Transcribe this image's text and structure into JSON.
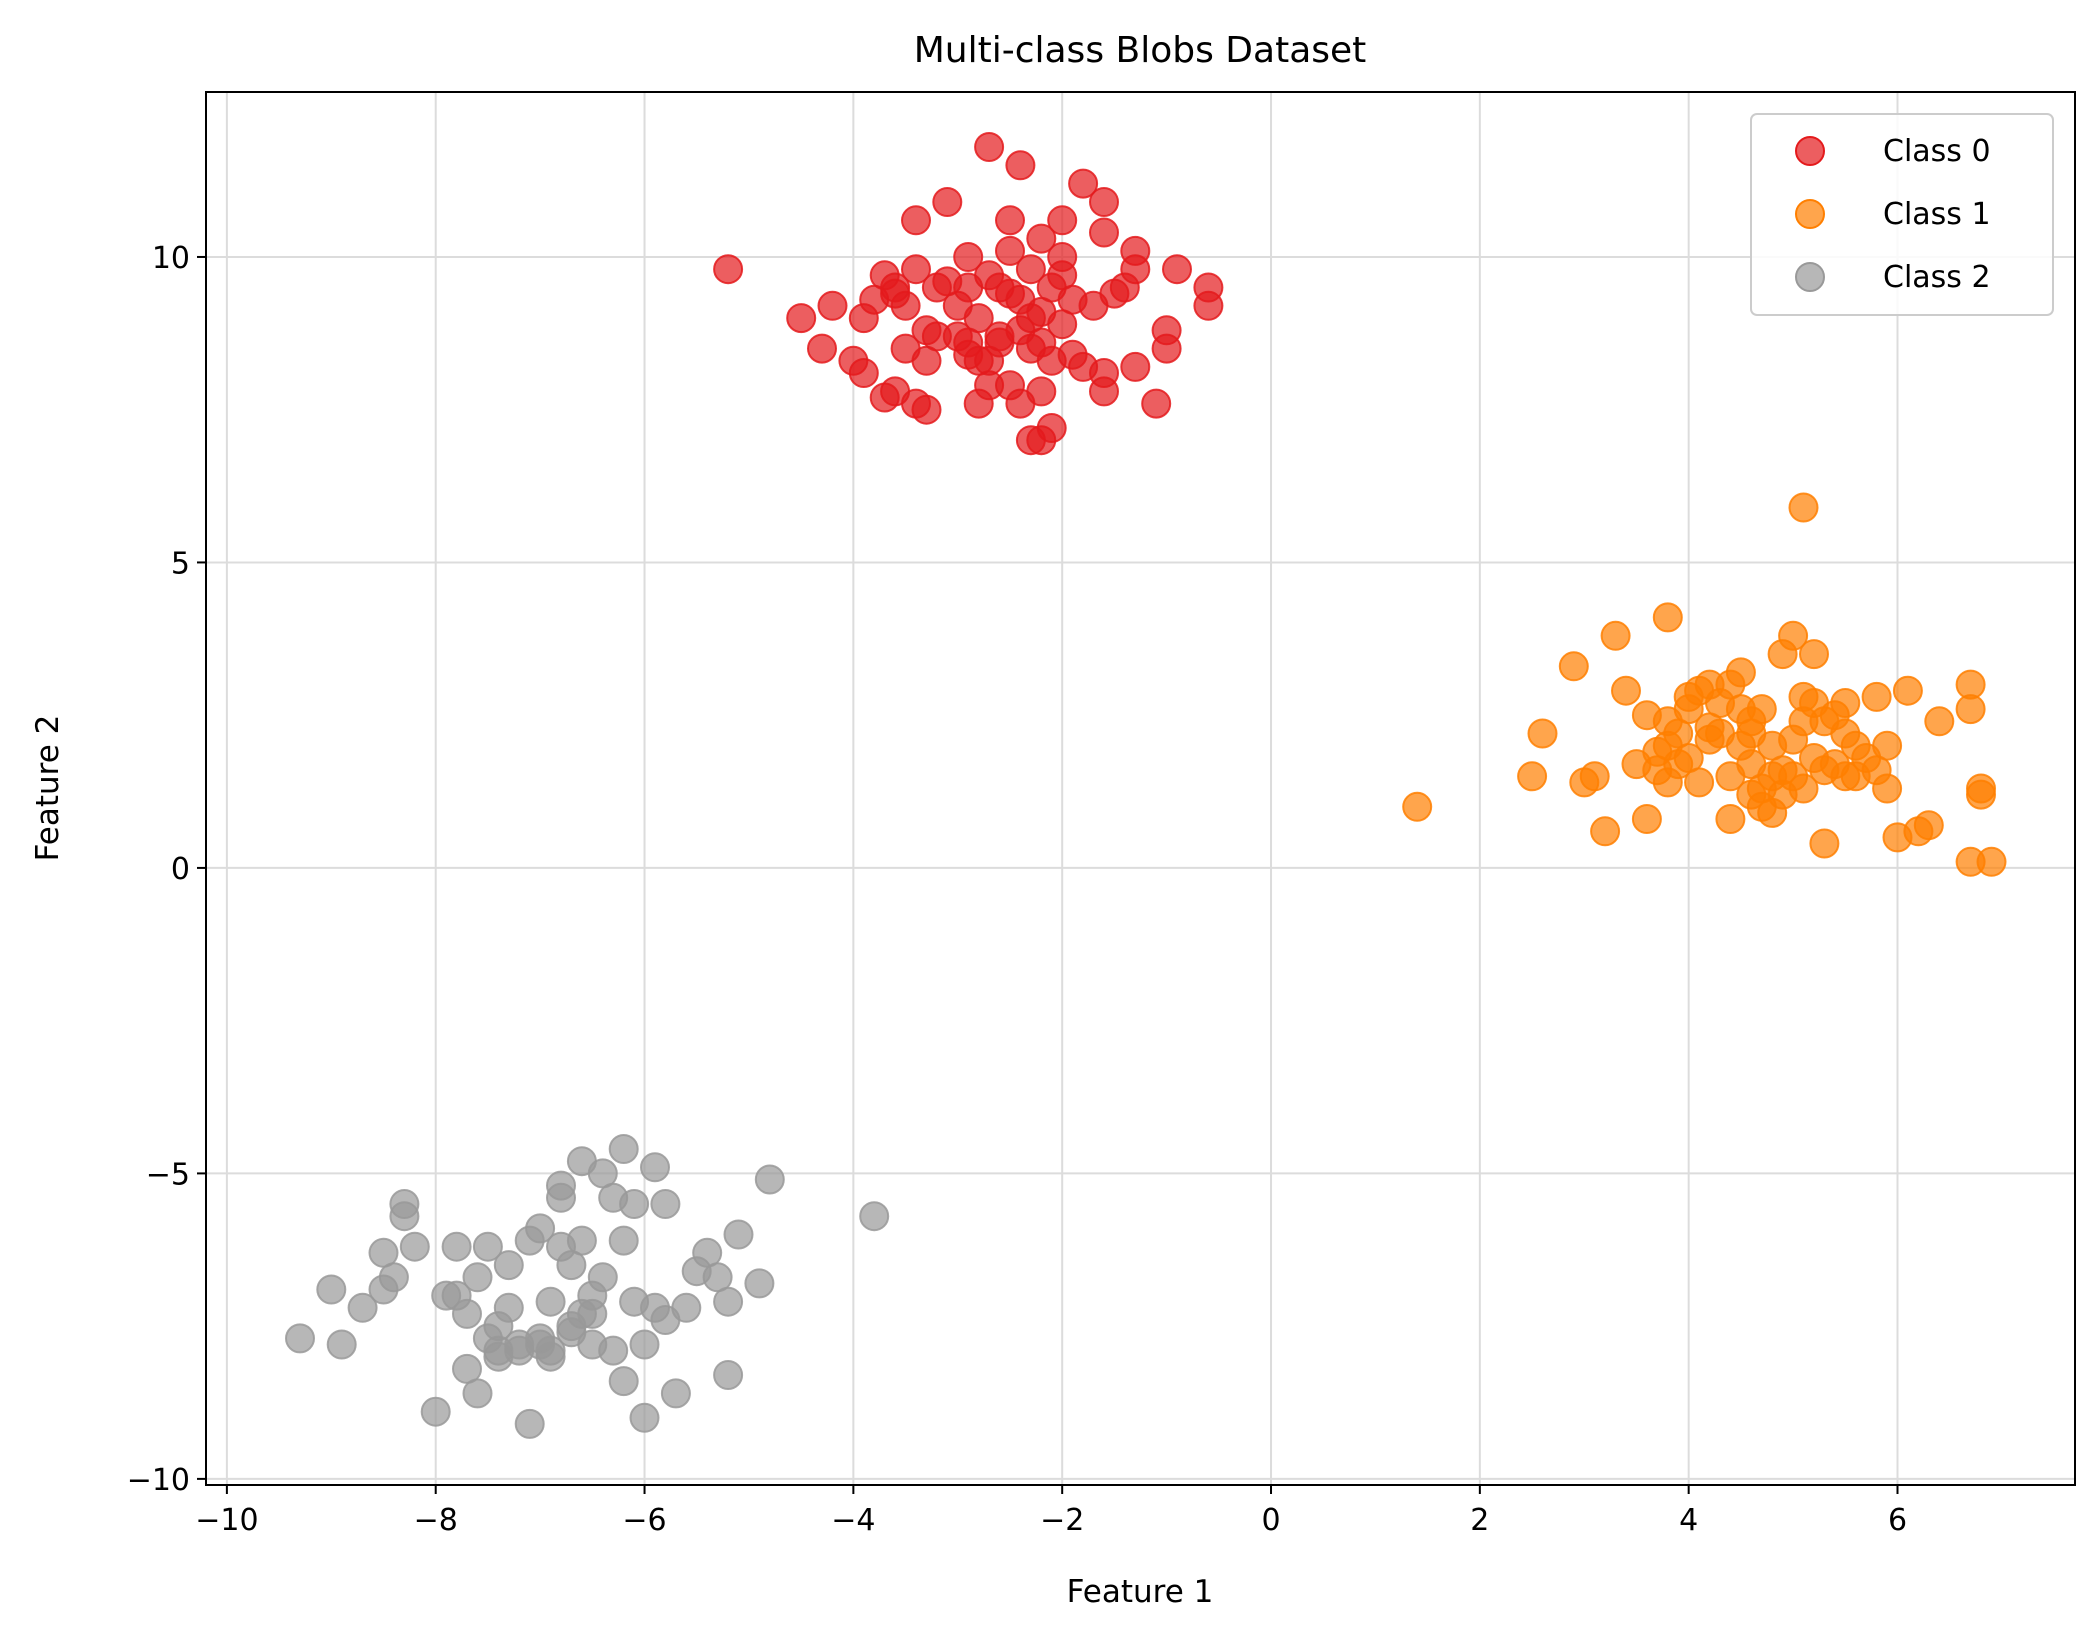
{
  "chart_data": {
    "type": "scatter",
    "title": "Multi-class Blobs Dataset",
    "xlabel": "Feature 1",
    "ylabel": "Feature 2",
    "xlim": [
      -10.2,
      7.7
    ],
    "ylim": [
      -10.1,
      12.7
    ],
    "xticks": [
      -10,
      -8,
      -6,
      -4,
      -2,
      0,
      2,
      4,
      6
    ],
    "yticks": [
      -10,
      -5,
      0,
      5,
      10
    ],
    "grid": true,
    "legend_position": "top-right",
    "series": [
      {
        "name": "Class 0",
        "color": "#e41a1c",
        "points": [
          [
            -5.2,
            9.8
          ],
          [
            -4.5,
            9.0
          ],
          [
            -4.3,
            8.5
          ],
          [
            -4.2,
            9.2
          ],
          [
            -4.0,
            8.3
          ],
          [
            -3.9,
            9.0
          ],
          [
            -3.9,
            8.1
          ],
          [
            -3.8,
            9.3
          ],
          [
            -3.7,
            7.7
          ],
          [
            -3.7,
            9.7
          ],
          [
            -3.6,
            7.8
          ],
          [
            -3.6,
            9.5
          ],
          [
            -3.5,
            8.5
          ],
          [
            -3.4,
            9.8
          ],
          [
            -3.5,
            9.2
          ],
          [
            -3.4,
            10.6
          ],
          [
            -3.4,
            7.6
          ],
          [
            -3.3,
            7.5
          ],
          [
            -3.3,
            8.3
          ],
          [
            -3.3,
            8.8
          ],
          [
            -3.2,
            8.7
          ],
          [
            -3.2,
            9.5
          ],
          [
            -3.1,
            9.6
          ],
          [
            -3.1,
            10.9
          ],
          [
            -3.0,
            9.2
          ],
          [
            -3.0,
            8.7
          ],
          [
            -2.9,
            8.6
          ],
          [
            -2.9,
            9.5
          ],
          [
            -2.9,
            10.0
          ],
          [
            -2.8,
            7.6
          ],
          [
            -2.8,
            8.3
          ],
          [
            -2.8,
            9.0
          ],
          [
            -2.7,
            8.3
          ],
          [
            -2.7,
            9.7
          ],
          [
            -2.7,
            11.8
          ],
          [
            -2.6,
            9.5
          ],
          [
            -2.6,
            8.7
          ],
          [
            -2.5,
            10.1
          ],
          [
            -2.5,
            10.6
          ],
          [
            -2.5,
            7.9
          ],
          [
            -2.5,
            9.4
          ],
          [
            -2.4,
            8.8
          ],
          [
            -2.4,
            7.6
          ],
          [
            -2.4,
            11.5
          ],
          [
            -2.3,
            7.0
          ],
          [
            -2.3,
            8.5
          ],
          [
            -2.3,
            9.0
          ],
          [
            -2.3,
            9.8
          ],
          [
            -2.2,
            7.0
          ],
          [
            -2.2,
            7.8
          ],
          [
            -2.2,
            8.6
          ],
          [
            -2.2,
            10.3
          ],
          [
            -2.1,
            9.5
          ],
          [
            -2.1,
            8.3
          ],
          [
            -2.1,
            7.2
          ],
          [
            -2.0,
            9.7
          ],
          [
            -2.0,
            10.0
          ],
          [
            -2.0,
            10.6
          ],
          [
            -1.9,
            8.4
          ],
          [
            -1.9,
            9.3
          ],
          [
            -1.8,
            11.2
          ],
          [
            -1.8,
            8.2
          ],
          [
            -1.7,
            9.2
          ],
          [
            -1.6,
            10.4
          ],
          [
            -1.6,
            10.9
          ],
          [
            -1.6,
            7.8
          ],
          [
            -1.6,
            8.1
          ],
          [
            -1.5,
            9.4
          ],
          [
            -1.4,
            9.5
          ],
          [
            -1.3,
            10.1
          ],
          [
            -1.3,
            9.8
          ],
          [
            -1.3,
            8.2
          ],
          [
            -1.1,
            7.6
          ],
          [
            -1.0,
            8.8
          ],
          [
            -1.0,
            8.5
          ],
          [
            -0.9,
            9.8
          ],
          [
            -0.6,
            9.5
          ],
          [
            -0.6,
            9.2
          ],
          [
            -2.6,
            8.6
          ],
          [
            -2.4,
            9.3
          ],
          [
            -2.2,
            9.1
          ],
          [
            -2.7,
            7.9
          ],
          [
            -3.6,
            9.4
          ],
          [
            -2.9,
            8.4
          ],
          [
            -2.0,
            8.9
          ]
        ]
      },
      {
        "name": "Class 1",
        "color": "#ff7f00",
        "points": [
          [
            1.4,
            1.0
          ],
          [
            2.5,
            1.5
          ],
          [
            2.6,
            2.2
          ],
          [
            2.9,
            3.3
          ],
          [
            3.0,
            1.4
          ],
          [
            3.1,
            1.5
          ],
          [
            3.2,
            0.6
          ],
          [
            3.3,
            3.8
          ],
          [
            3.4,
            2.9
          ],
          [
            3.5,
            1.7
          ],
          [
            3.6,
            0.8
          ],
          [
            3.6,
            2.5
          ],
          [
            3.7,
            1.9
          ],
          [
            3.8,
            1.4
          ],
          [
            3.8,
            2.0
          ],
          [
            3.8,
            2.4
          ],
          [
            3.8,
            4.1
          ],
          [
            3.9,
            1.7
          ],
          [
            3.9,
            2.2
          ],
          [
            4.0,
            2.8
          ],
          [
            4.0,
            2.6
          ],
          [
            4.1,
            2.9
          ],
          [
            4.1,
            1.4
          ],
          [
            4.2,
            2.1
          ],
          [
            4.2,
            3.0
          ],
          [
            4.3,
            2.2
          ],
          [
            4.3,
            2.7
          ],
          [
            4.4,
            0.8
          ],
          [
            4.4,
            1.5
          ],
          [
            4.5,
            2.6
          ],
          [
            4.5,
            3.2
          ],
          [
            4.5,
            2.0
          ],
          [
            4.6,
            1.2
          ],
          [
            4.6,
            2.4
          ],
          [
            4.6,
            1.7
          ],
          [
            4.7,
            1.0
          ],
          [
            4.7,
            2.6
          ],
          [
            4.7,
            1.3
          ],
          [
            4.8,
            1.5
          ],
          [
            4.8,
            2.0
          ],
          [
            4.8,
            0.9
          ],
          [
            4.9,
            1.2
          ],
          [
            4.9,
            3.5
          ],
          [
            5.0,
            1.5
          ],
          [
            5.0,
            3.8
          ],
          [
            5.0,
            2.1
          ],
          [
            5.1,
            2.8
          ],
          [
            5.1,
            1.3
          ],
          [
            5.2,
            3.5
          ],
          [
            5.2,
            1.8
          ],
          [
            5.2,
            2.7
          ],
          [
            5.3,
            0.4
          ],
          [
            5.3,
            1.6
          ],
          [
            5.4,
            1.7
          ],
          [
            5.4,
            2.5
          ],
          [
            5.5,
            2.7
          ],
          [
            5.5,
            2.2
          ],
          [
            5.6,
            1.5
          ],
          [
            5.6,
            2.0
          ],
          [
            5.7,
            1.8
          ],
          [
            5.8,
            2.8
          ],
          [
            5.8,
            1.6
          ],
          [
            5.9,
            1.3
          ],
          [
            5.9,
            2.0
          ],
          [
            6.0,
            0.5
          ],
          [
            6.1,
            2.9
          ],
          [
            6.2,
            0.6
          ],
          [
            6.3,
            0.7
          ],
          [
            6.4,
            2.4
          ],
          [
            6.7,
            0.1
          ],
          [
            6.7,
            2.6
          ],
          [
            6.7,
            3.0
          ],
          [
            6.8,
            1.2
          ],
          [
            6.8,
            1.3
          ],
          [
            6.9,
            0.1
          ],
          [
            5.1,
            5.9
          ],
          [
            4.2,
            2.3
          ],
          [
            4.9,
            1.6
          ],
          [
            5.3,
            2.4
          ],
          [
            4.6,
            2.2
          ],
          [
            5.5,
            1.5
          ],
          [
            4.4,
            3.0
          ],
          [
            5.1,
            2.4
          ],
          [
            3.7,
            1.6
          ],
          [
            4.0,
            1.8
          ]
        ]
      },
      {
        "name": "Class 2",
        "color": "#999999",
        "points": [
          [
            -9.3,
            -7.7
          ],
          [
            -9.0,
            -6.9
          ],
          [
            -8.9,
            -7.8
          ],
          [
            -8.7,
            -7.2
          ],
          [
            -8.5,
            -6.9
          ],
          [
            -8.5,
            -6.3
          ],
          [
            -8.4,
            -6.7
          ],
          [
            -8.3,
            -5.5
          ],
          [
            -8.3,
            -5.7
          ],
          [
            -8.2,
            -6.2
          ],
          [
            -8.0,
            -8.9
          ],
          [
            -7.9,
            -7.0
          ],
          [
            -7.8,
            -7.0
          ],
          [
            -7.8,
            -6.2
          ],
          [
            -7.7,
            -7.3
          ],
          [
            -7.7,
            -8.2
          ],
          [
            -7.6,
            -8.6
          ],
          [
            -7.6,
            -6.7
          ],
          [
            -7.5,
            -7.7
          ],
          [
            -7.5,
            -6.2
          ],
          [
            -7.4,
            -7.5
          ],
          [
            -7.4,
            -8.0
          ],
          [
            -7.3,
            -7.2
          ],
          [
            -7.3,
            -6.5
          ],
          [
            -7.2,
            -7.9
          ],
          [
            -7.1,
            -9.1
          ],
          [
            -7.1,
            -6.1
          ],
          [
            -7.0,
            -5.9
          ],
          [
            -7.0,
            -7.8
          ],
          [
            -6.9,
            -7.1
          ],
          [
            -6.9,
            -8.0
          ],
          [
            -6.8,
            -5.2
          ],
          [
            -6.8,
            -5.4
          ],
          [
            -6.8,
            -6.2
          ],
          [
            -6.7,
            -7.6
          ],
          [
            -6.7,
            -6.5
          ],
          [
            -6.6,
            -7.3
          ],
          [
            -6.6,
            -4.8
          ],
          [
            -6.6,
            -6.1
          ],
          [
            -6.5,
            -7.0
          ],
          [
            -6.5,
            -7.8
          ],
          [
            -6.4,
            -5.0
          ],
          [
            -6.4,
            -6.7
          ],
          [
            -6.3,
            -5.4
          ],
          [
            -6.3,
            -7.9
          ],
          [
            -6.2,
            -6.1
          ],
          [
            -6.2,
            -8.4
          ],
          [
            -6.2,
            -4.6
          ],
          [
            -6.1,
            -7.1
          ],
          [
            -6.1,
            -5.5
          ],
          [
            -6.0,
            -7.8
          ],
          [
            -6.0,
            -9.0
          ],
          [
            -5.9,
            -7.2
          ],
          [
            -5.9,
            -4.9
          ],
          [
            -5.8,
            -5.5
          ],
          [
            -5.8,
            -7.4
          ],
          [
            -5.7,
            -8.6
          ],
          [
            -5.6,
            -7.2
          ],
          [
            -5.5,
            -6.6
          ],
          [
            -5.4,
            -6.3
          ],
          [
            -5.3,
            -6.7
          ],
          [
            -5.2,
            -8.3
          ],
          [
            -5.2,
            -7.1
          ],
          [
            -5.1,
            -6.0
          ],
          [
            -4.9,
            -6.8
          ],
          [
            -4.8,
            -5.1
          ],
          [
            -3.8,
            -5.7
          ],
          [
            -7.2,
            -7.8
          ],
          [
            -6.7,
            -7.5
          ],
          [
            -6.9,
            -7.9
          ],
          [
            -7.4,
            -7.9
          ],
          [
            -6.5,
            -7.3
          ],
          [
            -7.0,
            -7.7
          ]
        ]
      }
    ]
  }
}
